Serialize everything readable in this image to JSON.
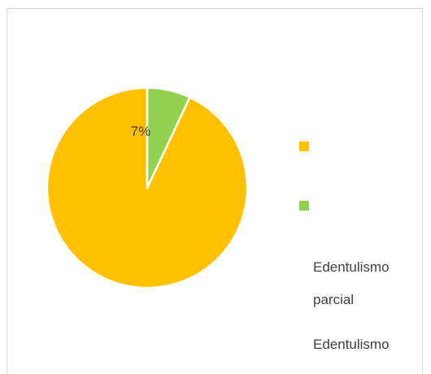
{
  "chart_data": {
    "type": "pie",
    "title": "",
    "slices": [
      {
        "label": "Edentulismo parcial",
        "value": 93,
        "color": "#ffc000",
        "data_label": ""
      },
      {
        "label": "Edentulismo",
        "value": 7,
        "color": "#92d050",
        "data_label": "7%"
      }
    ],
    "legend": {
      "placement": "right",
      "entries": [
        "Edentulismo parcial",
        "Edentulismo"
      ]
    },
    "label_line_1": "Edentulismo",
    "label_line_2": "parcial",
    "label_line_3": "Edentulismo"
  }
}
